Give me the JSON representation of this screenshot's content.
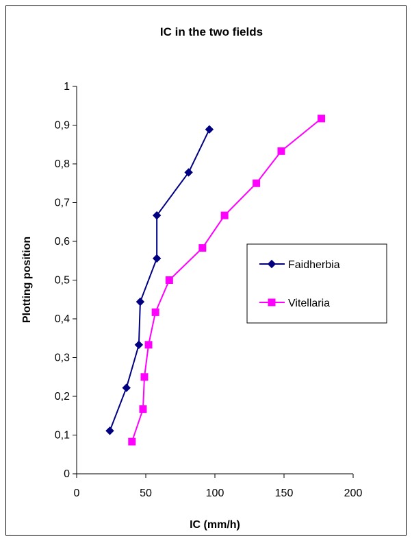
{
  "chart_data": {
    "type": "line",
    "title": "IC in the two fields",
    "xlabel": "IC (mm/h)",
    "ylabel": "Plotting position",
    "xlim": [
      0,
      200
    ],
    "ylim": [
      0,
      1
    ],
    "xticks": [
      0,
      50,
      100,
      150,
      200
    ],
    "yticks": [
      0,
      0.1,
      0.2,
      0.3,
      0.4,
      0.5,
      0.6,
      0.7,
      0.8,
      0.9,
      1
    ],
    "xtick_labels": [
      "0",
      "50",
      "100",
      "150",
      "200"
    ],
    "ytick_labels": [
      "0",
      "0,1",
      "0,2",
      "0,3",
      "0,4",
      "0,5",
      "0,6",
      "0,7",
      "0,8",
      "0,9",
      "1"
    ],
    "grid": false,
    "legend_position": "right",
    "series": [
      {
        "name": "Faidherbia",
        "color": "#000080",
        "marker": "diamond",
        "points": [
          {
            "x": 24,
            "y": 0.111
          },
          {
            "x": 36,
            "y": 0.222
          },
          {
            "x": 45,
            "y": 0.333
          },
          {
            "x": 46,
            "y": 0.444
          },
          {
            "x": 58,
            "y": 0.556
          },
          {
            "x": 58,
            "y": 0.667
          },
          {
            "x": 81,
            "y": 0.778
          },
          {
            "x": 96,
            "y": 0.889
          }
        ]
      },
      {
        "name": "Vitellaria",
        "color": "#FF00FF",
        "marker": "square",
        "points": [
          {
            "x": 40,
            "y": 0.083
          },
          {
            "x": 48,
            "y": 0.167
          },
          {
            "x": 49,
            "y": 0.25
          },
          {
            "x": 52,
            "y": 0.333
          },
          {
            "x": 57,
            "y": 0.417
          },
          {
            "x": 67,
            "y": 0.5
          },
          {
            "x": 91,
            "y": 0.583
          },
          {
            "x": 107,
            "y": 0.667
          },
          {
            "x": 130,
            "y": 0.75
          },
          {
            "x": 148,
            "y": 0.833
          },
          {
            "x": 177,
            "y": 0.917
          }
        ]
      }
    ]
  }
}
